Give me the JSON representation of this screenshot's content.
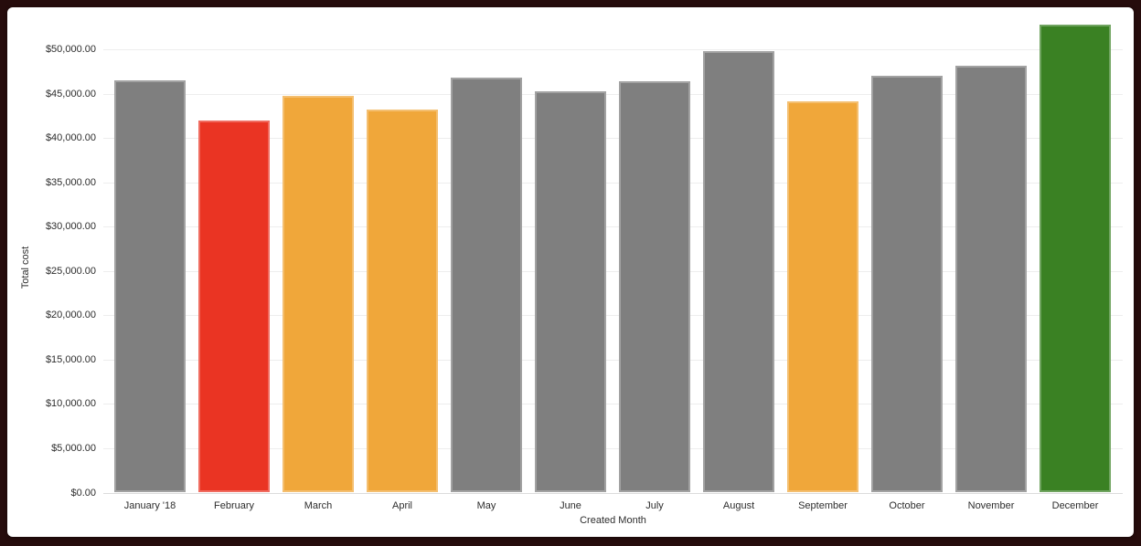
{
  "colors": {
    "frame_border": "#260c0c",
    "card_background": "#ffffff",
    "grid": "#ededed",
    "axis_text": "#2d2d2d",
    "bar_default": "#7f7f7f",
    "bar_red": "#ea3423",
    "bar_orange": "#f0a73a",
    "bar_green": "#3a8123"
  },
  "chart_data": {
    "type": "bar",
    "title": "",
    "xlabel": "Created Month",
    "ylabel": "Total cost",
    "categories": [
      "January '18",
      "February",
      "March",
      "April",
      "May",
      "June",
      "July",
      "August",
      "September",
      "October",
      "November",
      "December"
    ],
    "values": [
      46500,
      42000,
      44700,
      43200,
      46800,
      45300,
      46400,
      49800,
      44100,
      47000,
      48100,
      52800
    ],
    "bar_colors": [
      "#7f7f7f",
      "#ea3423",
      "#f0a73a",
      "#f0a73a",
      "#7f7f7f",
      "#7f7f7f",
      "#7f7f7f",
      "#7f7f7f",
      "#f0a73a",
      "#7f7f7f",
      "#7f7f7f",
      "#3a8123"
    ],
    "ylim": [
      0,
      53500
    ],
    "ytick_values": [
      0,
      5000,
      10000,
      15000,
      20000,
      25000,
      30000,
      35000,
      40000,
      45000,
      50000
    ],
    "ytick_labels": [
      "$0.00",
      "$5,000.00",
      "$10,000.00",
      "$15,000.00",
      "$20,000.00",
      "$25,000.00",
      "$30,000.00",
      "$35,000.00",
      "$40,000.00",
      "$45,000.00",
      "$50,000.00"
    ],
    "grid": "horizontal",
    "legend": false
  }
}
